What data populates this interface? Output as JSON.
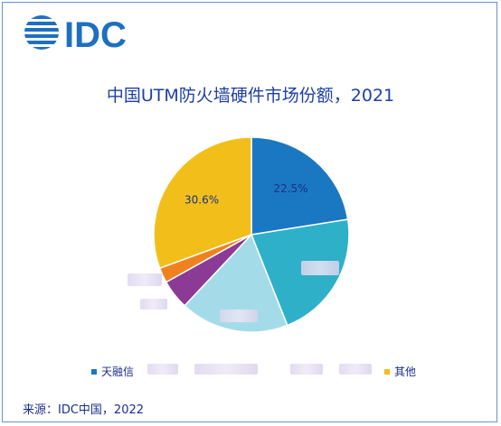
{
  "logo": {
    "text": "IDC"
  },
  "chart_data": {
    "type": "pie",
    "title": "中国UTM防火墙硬件市场份额，2021",
    "slices": [
      {
        "name": "天融信",
        "value": 22.5,
        "label": "22.5%",
        "color": "#1a78c2"
      },
      {
        "name": "",
        "value": 21.5,
        "label": "",
        "color": "#2eb0c9"
      },
      {
        "name": "",
        "value": 18.0,
        "label": "",
        "color": "#a3dce8"
      },
      {
        "name": "",
        "value": 4.9,
        "label": "",
        "color": "#8b3a96"
      },
      {
        "name": "",
        "value": 2.5,
        "label": "",
        "color": "#f0821e"
      },
      {
        "name": "其他",
        "value": 30.6,
        "label": "30.6%",
        "color": "#f2bf1a"
      }
    ],
    "legend_position": "bottom"
  },
  "legend": {
    "items": [
      {
        "label": "天融信",
        "color": "#1a78c2"
      },
      {
        "label": "其他",
        "color": "#f2bf1a"
      }
    ]
  },
  "source": "来源：IDC中国，2022"
}
